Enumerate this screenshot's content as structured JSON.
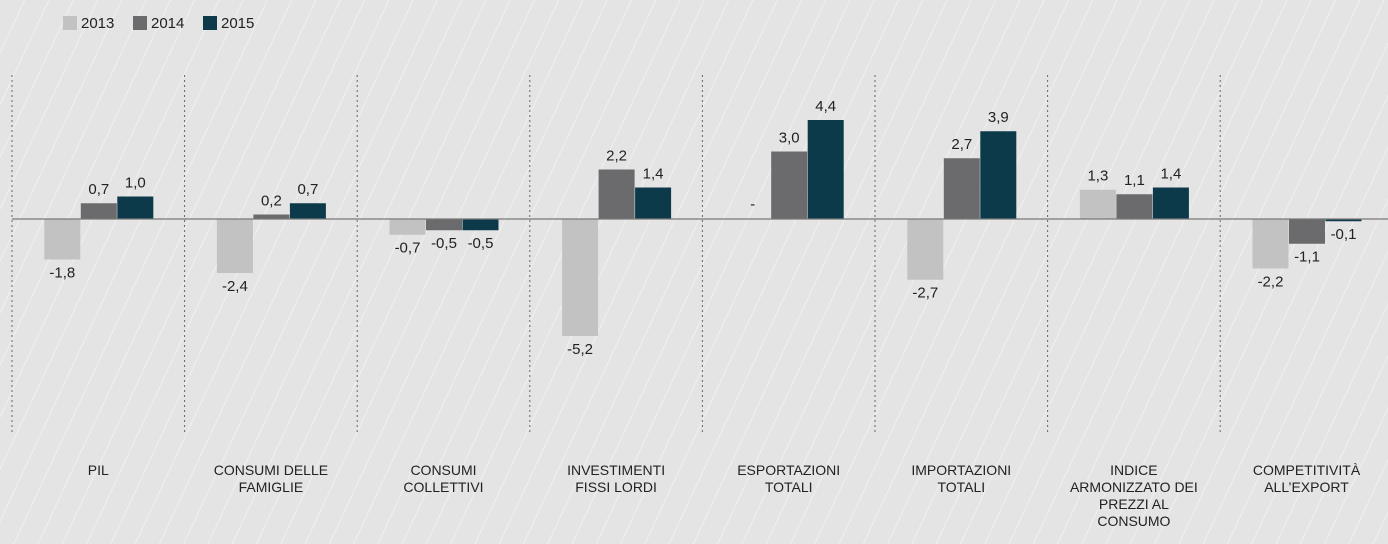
{
  "chart_data": {
    "type": "bar",
    "categories": [
      "PIL",
      "CONSUMI DELLE FAMIGLIE",
      "CONSUMI COLLETTIVI",
      "INVESTIMENTI FISSI LORDI",
      "ESPORTAZIONI TOTALI",
      "IMPORTAZIONI TOTALI",
      "INDICE ARMONIZZATO DEI PREZZI AL CONSUMO",
      "COMPETITIVITÀ ALL’EXPORT"
    ],
    "series": [
      {
        "name": "2013",
        "color": "#c2c2c2",
        "values": [
          -1.8,
          -2.4,
          -0.7,
          -5.2,
          null,
          -2.7,
          1.3,
          -2.2
        ],
        "value_labels": [
          "-1,8",
          "-2,4",
          "-0,7",
          "-5,2",
          "-",
          "-2,7",
          "1,3",
          "-2,2"
        ]
      },
      {
        "name": "2014",
        "color": "#6b6b6d",
        "values": [
          0.7,
          0.2,
          -0.5,
          2.2,
          3.0,
          2.7,
          1.1,
          -1.1
        ],
        "value_labels": [
          "0,7",
          "0,2",
          "-0,5",
          "2,2",
          "3,0",
          "2,7",
          "1,1",
          "-1,1"
        ]
      },
      {
        "name": "2015",
        "color": "#0c3a4b",
        "values": [
          1.0,
          0.7,
          -0.5,
          1.4,
          4.4,
          3.9,
          1.4,
          -0.1
        ],
        "value_labels": [
          "1,0",
          "0,7",
          "-0,5",
          "1,4",
          "4,4",
          "3,9",
          "1,4",
          "-0,1"
        ]
      }
    ],
    "ylim": [
      -9.6,
      6.4
    ],
    "legend": "top-left"
  }
}
